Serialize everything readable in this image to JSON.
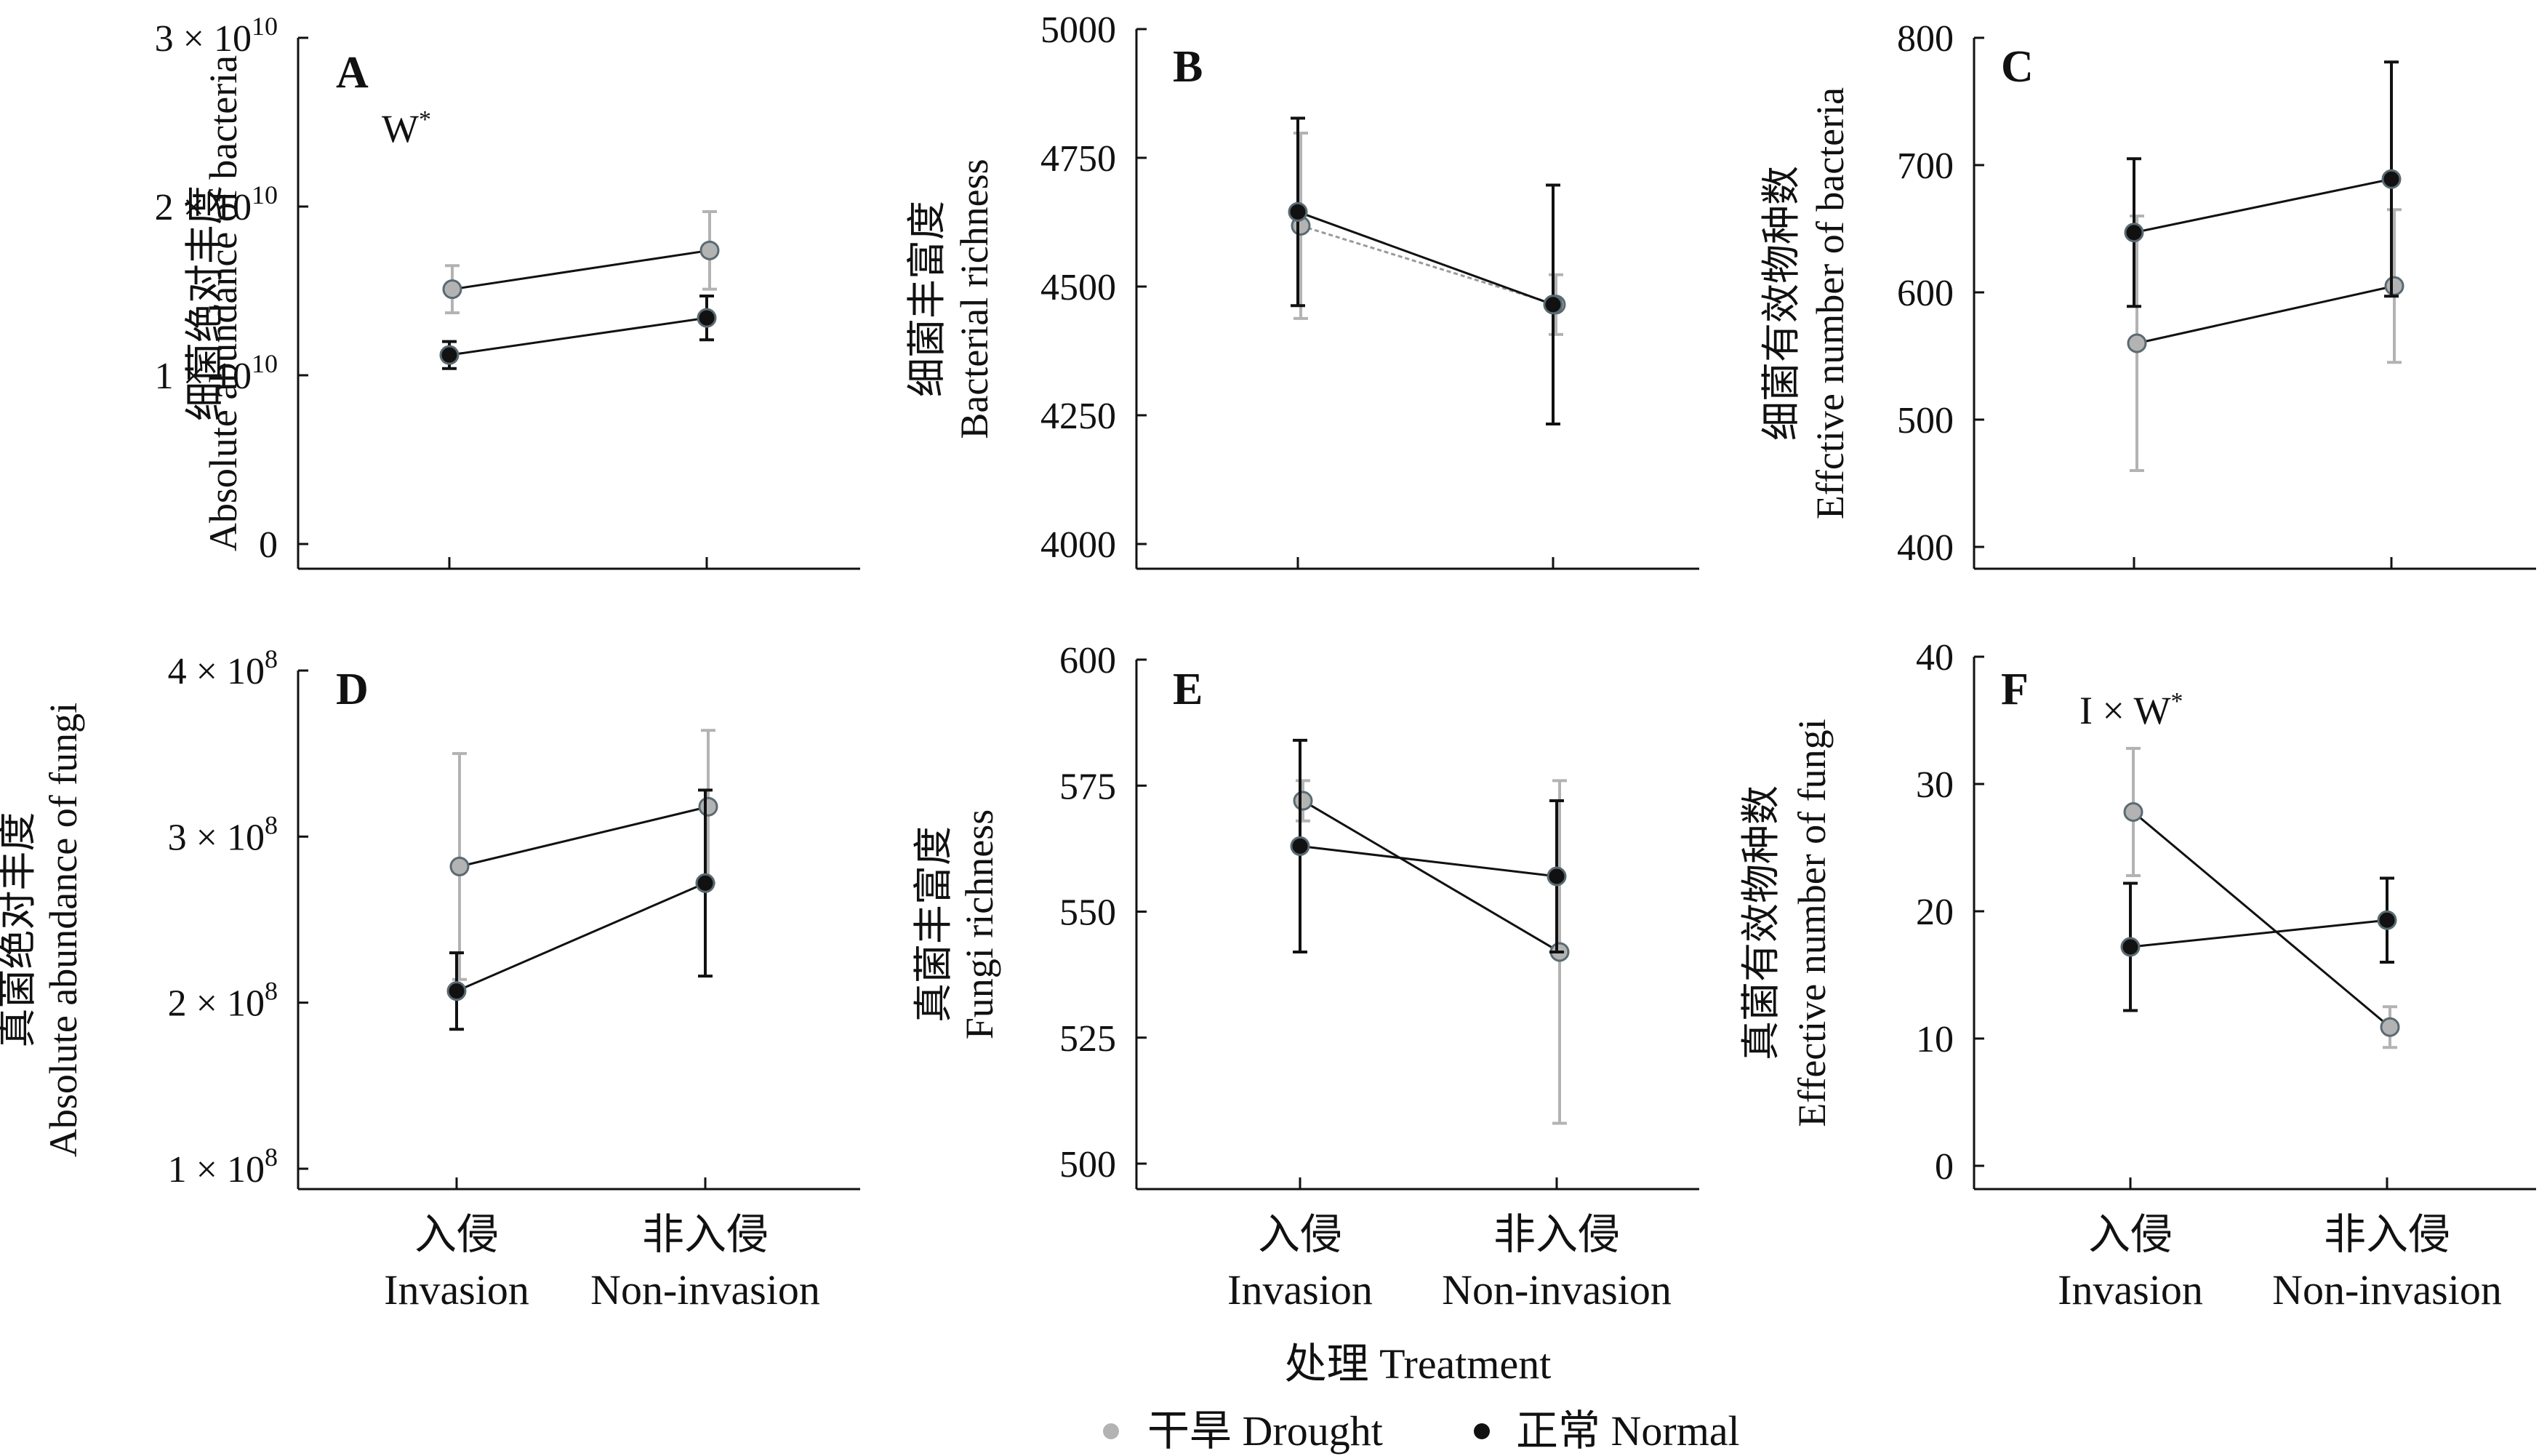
{
  "shared": {
    "categories_cn": [
      "入侵",
      "非入侵"
    ],
    "categories_en": [
      "Invasion",
      "Non-invasion"
    ],
    "xlabel": "处理 Treatment"
  },
  "legend": {
    "drought": "干旱 Drought",
    "normal": "正常 Normal"
  },
  "colors": {
    "drought": "#b3b3b3",
    "normal": "#111111",
    "dot_outline": "#5a6a72",
    "axis": "#111111"
  },
  "chart_data": [
    {
      "panel": "A",
      "type": "line",
      "ylabel_cn": "细菌绝对丰度",
      "ylabel_en": "Absolute abundance of bacteria",
      "annotation": "W*",
      "ylim": [
        0,
        30000000000
      ],
      "yticks": [
        0,
        10000000000,
        20000000000,
        30000000000
      ],
      "ytick_labels": [
        {
          "plain": "0"
        },
        {
          "mant": "1 × 10",
          "exp": "10"
        },
        {
          "mant": "2 × 10",
          "exp": "10"
        },
        {
          "mant": "3 × 10",
          "exp": "10"
        }
      ],
      "categories": [
        "Invasion",
        "Non-invasion"
      ],
      "series": [
        {
          "key": "drought",
          "values": [
            15100000000,
            17400000000
          ],
          "err": [
            1400000000,
            2300000000
          ]
        },
        {
          "key": "normal",
          "values": [
            11200000000,
            13400000000
          ],
          "err": [
            800000000,
            1300000000
          ]
        }
      ]
    },
    {
      "panel": "B",
      "type": "line",
      "ylabel_cn": "细菌丰富度",
      "ylabel_en": "Bacterial richness",
      "ylim": [
        4000,
        5000
      ],
      "yticks": [
        4000,
        4250,
        4500,
        4750,
        5000
      ],
      "ytick_labels": [
        {
          "plain": "4000"
        },
        {
          "plain": "4250"
        },
        {
          "plain": "4500"
        },
        {
          "plain": "4750"
        },
        {
          "plain": "5000"
        }
      ],
      "categories": [
        "Invasion",
        "Non-invasion"
      ],
      "series": [
        {
          "key": "drought",
          "values": [
            4618,
            4465
          ],
          "err": [
            180,
            58
          ]
        },
        {
          "key": "normal",
          "values": [
            4645,
            4465
          ],
          "err": [
            182,
            232
          ]
        }
      ]
    },
    {
      "panel": "C",
      "type": "line",
      "ylabel_cn": "细菌有效物种数",
      "ylabel_en": "Effctive number of bacteria",
      "ylim": [
        400,
        800
      ],
      "yticks": [
        400,
        500,
        600,
        700,
        800
      ],
      "ytick_labels": [
        {
          "plain": "400"
        },
        {
          "plain": "500"
        },
        {
          "plain": "600"
        },
        {
          "plain": "700"
        },
        {
          "plain": "800"
        }
      ],
      "categories": [
        "Invasion",
        "Non-invasion"
      ],
      "series": [
        {
          "key": "drought",
          "values": [
            560,
            605
          ],
          "err": [
            100,
            60
          ]
        },
        {
          "key": "normal",
          "values": [
            647,
            689
          ],
          "err": [
            58,
            92
          ]
        }
      ]
    },
    {
      "panel": "D",
      "type": "line",
      "ylabel_cn": "真菌绝对丰度",
      "ylabel_en": "Absolute abundance of fungi",
      "ylim": [
        100000000,
        400000000
      ],
      "yticks": [
        100000000,
        200000000,
        300000000,
        400000000
      ],
      "ytick_labels": [
        {
          "mant": "1 × 10",
          "exp": "8"
        },
        {
          "mant": "2 × 10",
          "exp": "8"
        },
        {
          "mant": "3 × 10",
          "exp": "8"
        },
        {
          "mant": "4 × 10",
          "exp": "8"
        }
      ],
      "categories": [
        "Invasion",
        "Non-invasion"
      ],
      "series": [
        {
          "key": "drought",
          "values": [
            282000000,
            318000000
          ],
          "err": [
            68000000,
            46000000
          ]
        },
        {
          "key": "normal",
          "values": [
            207000000,
            272000000
          ],
          "err": [
            23000000,
            56000000
          ]
        }
      ]
    },
    {
      "panel": "E",
      "type": "line",
      "ylabel_cn": "真菌丰富度",
      "ylabel_en": "Fungi richness",
      "ylim": [
        500,
        600
      ],
      "yticks": [
        500,
        525,
        550,
        575,
        600
      ],
      "ytick_labels": [
        {
          "plain": "500"
        },
        {
          "plain": "525"
        },
        {
          "plain": "550"
        },
        {
          "plain": "575"
        },
        {
          "plain": "600"
        }
      ],
      "categories": [
        "Invasion",
        "Non-invasion"
      ],
      "series": [
        {
          "key": "drought",
          "values": [
            572,
            542
          ],
          "err": [
            4,
            34
          ]
        },
        {
          "key": "normal",
          "values": [
            563,
            557
          ],
          "err": [
            21,
            15
          ]
        }
      ]
    },
    {
      "panel": "F",
      "type": "line",
      "ylabel_cn": "真菌有效物种数",
      "ylabel_en": "Effective number of fungi",
      "annotation": "I × W*",
      "ylim": [
        0,
        40
      ],
      "yticks": [
        0,
        10,
        20,
        30,
        40
      ],
      "ytick_labels": [
        {
          "plain": "0"
        },
        {
          "plain": "10"
        },
        {
          "plain": "20"
        },
        {
          "plain": "30"
        },
        {
          "plain": "40"
        }
      ],
      "categories": [
        "Invasion",
        "Non-invasion"
      ],
      "series": [
        {
          "key": "drought",
          "values": [
            27.8,
            10.9
          ],
          "err": [
            5,
            1.6
          ]
        },
        {
          "key": "normal",
          "values": [
            17.2,
            19.3
          ],
          "err": [
            5,
            3.3
          ]
        }
      ]
    }
  ]
}
